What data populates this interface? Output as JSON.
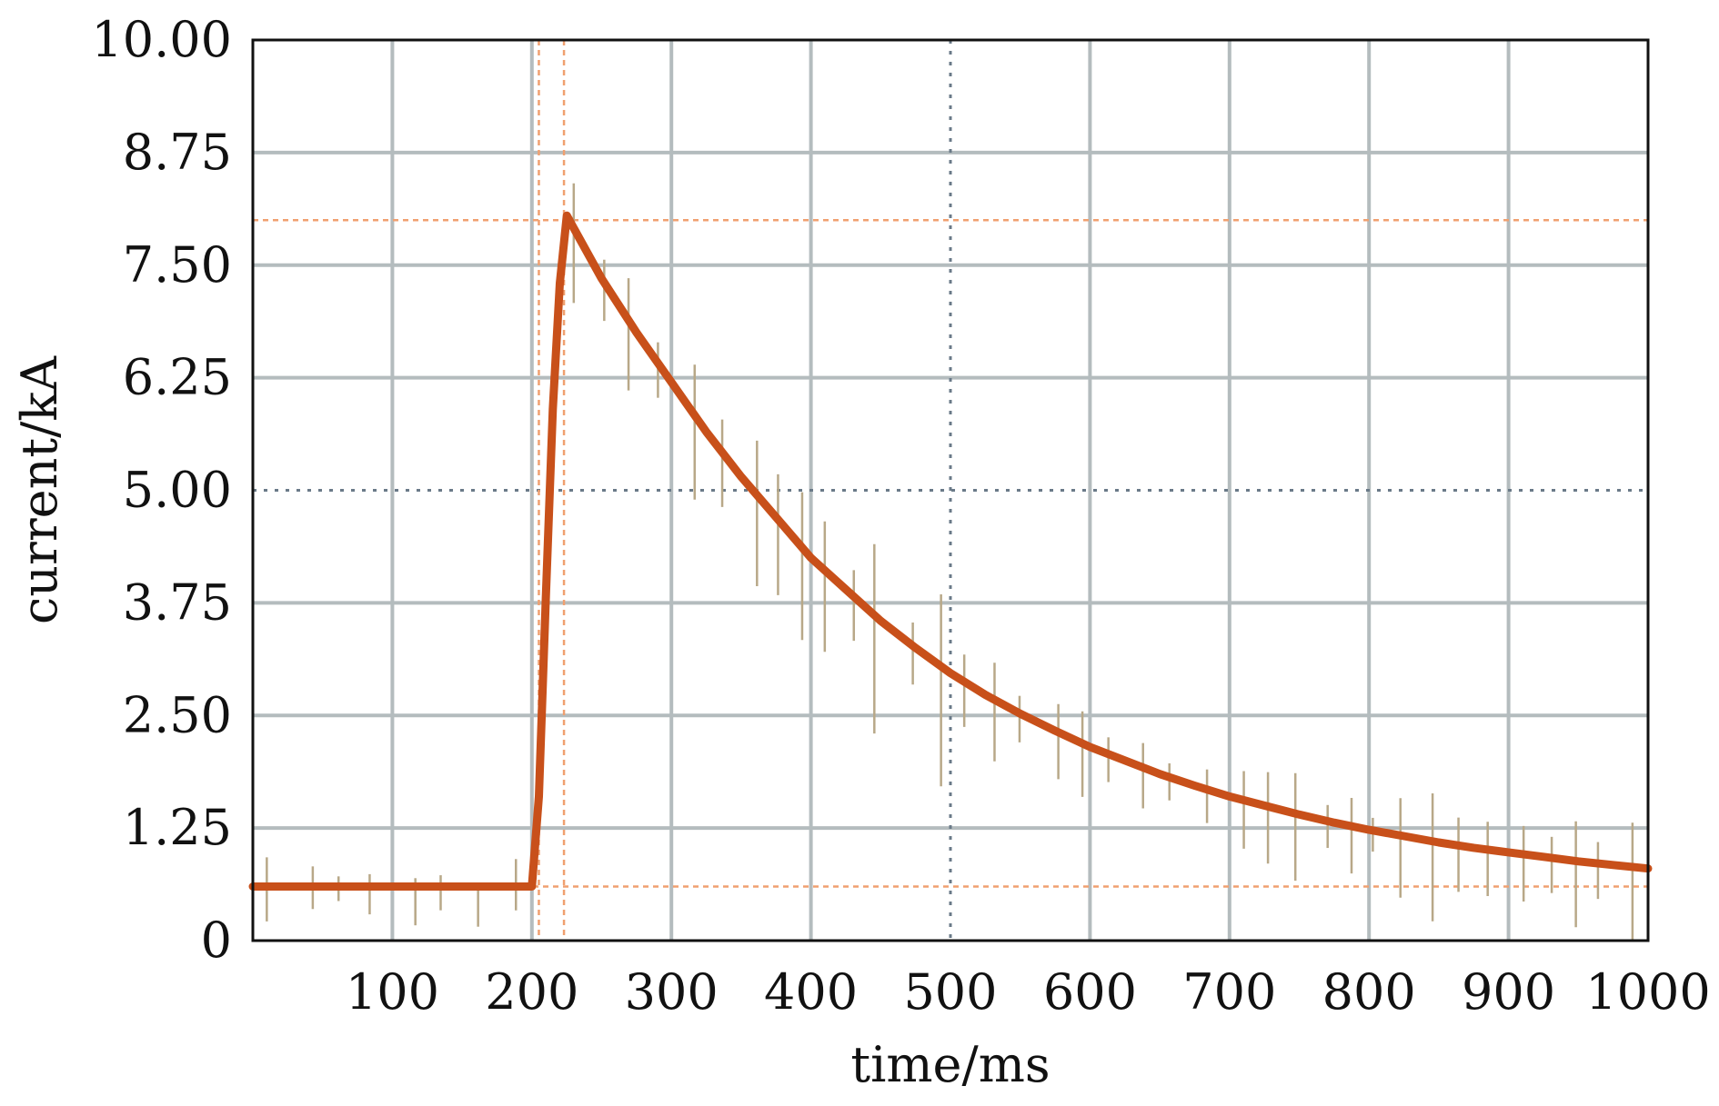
{
  "chart_data": {
    "type": "line",
    "title": "",
    "xlabel": "time/ms",
    "ylabel": "current/kA",
    "xlim": [
      0,
      1000
    ],
    "ylim": [
      0,
      10
    ],
    "x_ticks": [
      100,
      200,
      300,
      400,
      500,
      600,
      700,
      800,
      900,
      1000
    ],
    "x_tick_labels": [
      "100",
      "200",
      "300",
      "400",
      "500",
      "600",
      "700",
      "800",
      "900",
      "1000"
    ],
    "y_ticks": [
      0,
      1.25,
      2.5,
      3.75,
      5,
      6.25,
      7.5,
      8.75,
      10
    ],
    "y_tick_labels": [
      "0",
      "1.25",
      "2.50",
      "3.75",
      "5.00",
      "6.25",
      "7.50",
      "8.75",
      "10.00"
    ],
    "grid": true,
    "legend": "none",
    "colors": {
      "trace": "#c8501a",
      "grid": "#b4bcbe",
      "cursor": "#f0a070",
      "dotted_center": "#6a7a88",
      "noise": "#b8a888"
    },
    "cursor_lines": {
      "vertical_x": [
        205,
        223
      ],
      "horizontal_y": [
        8.0,
        0.6
      ]
    },
    "center_lines": {
      "x": 500,
      "y": 5.0
    },
    "series": [
      {
        "x": [
          0,
          50,
          100,
          150,
          200,
          205,
          210,
          215,
          220,
          225,
          250,
          275,
          300,
          325,
          350,
          375,
          400,
          425,
          450,
          475,
          500,
          525,
          550,
          575,
          600,
          625,
          650,
          675,
          700,
          725,
          750,
          775,
          800,
          825,
          850,
          875,
          900,
          925,
          950,
          975,
          1000
        ],
        "values": [
          0.6,
          0.6,
          0.6,
          0.6,
          0.6,
          1.6,
          3.8,
          5.9,
          7.3,
          8.05,
          7.35,
          6.75,
          6.2,
          5.65,
          5.15,
          4.7,
          4.25,
          3.9,
          3.55,
          3.25,
          2.97,
          2.73,
          2.52,
          2.33,
          2.15,
          2.0,
          1.85,
          1.72,
          1.6,
          1.5,
          1.4,
          1.31,
          1.23,
          1.16,
          1.09,
          1.03,
          0.98,
          0.93,
          0.88,
          0.84,
          0.8
        ]
      }
    ]
  }
}
